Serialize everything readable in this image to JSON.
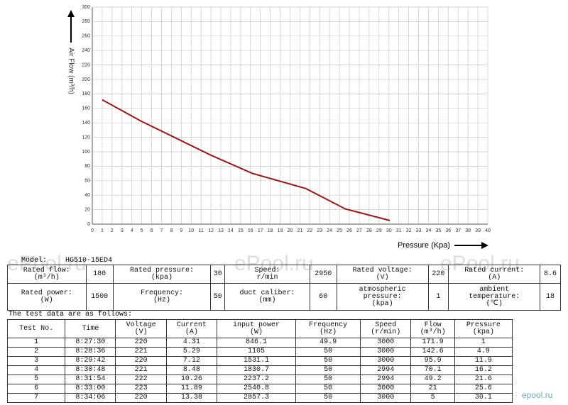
{
  "chart_data": {
    "type": "line",
    "ylabel": "Air Flow (m³/h)",
    "xlabel": "Pressure (Kpa)",
    "xlim": [
      0,
      40
    ],
    "xticks": [
      0,
      1,
      2,
      3,
      4,
      5,
      6,
      7,
      8,
      9,
      10,
      11,
      12,
      13,
      14,
      15,
      16,
      17,
      18,
      19,
      20,
      21,
      22,
      23,
      24,
      25,
      26,
      27,
      28,
      29,
      30,
      31,
      32,
      33,
      34,
      35,
      36,
      37,
      38,
      39,
      40
    ],
    "ylim": [
      0,
      300
    ],
    "yticks": [
      0,
      20,
      40,
      60,
      80,
      100,
      120,
      140,
      160,
      180,
      200,
      220,
      240,
      260,
      280,
      300
    ],
    "grid": true,
    "x": [
      1,
      4.9,
      11.9,
      16.2,
      21.6,
      25.6,
      30.1
    ],
    "series": [
      {
        "name": "Air Flow",
        "color": "#a01414",
        "values": [
          171.9,
          142.6,
          95.9,
          70.1,
          49.2,
          21,
          5
        ]
      }
    ]
  },
  "spec": {
    "model_label": "Model:",
    "model": "HG510-15ED4",
    "rows": [
      [
        "Rated flow:\n(m³/h)",
        180,
        "Rated pressure:\n(kpa)",
        30,
        "Speed:\nr/min",
        2950,
        "Rated voltage:\n(V)",
        220,
        "Rated current:\n(A)",
        8.6
      ],
      [
        "Rated power:\n(W)",
        1500,
        "Frequency:\n(Hz)",
        50,
        "duct caliber:\n(mm)",
        60,
        "atmospheric\npressure:\n(kpa)",
        1,
        "ambient\ntemperature:\n(℃)",
        18
      ]
    ]
  },
  "test": {
    "caption": "The test data are as follows:",
    "header": [
      "Test No.",
      "Time",
      "Voltage\n(V)",
      "Current\n(A)",
      "input power\n(W)",
      "Frequency\n(Hz)",
      "Speed\n(r/min)",
      "Flow\n(m³/h)",
      "Pressure\n(kpa)"
    ],
    "rows": [
      [
        1,
        "8:27:30",
        220,
        4.31,
        846.1,
        49.9,
        3000,
        171.9,
        1
      ],
      [
        2,
        "8:28:36",
        221,
        5.29,
        1105,
        50,
        3000,
        142.6,
        4.9
      ],
      [
        3,
        "8:29:42",
        220,
        7.12,
        1531.1,
        50,
        3000,
        95.9,
        11.9
      ],
      [
        4,
        "8:30:48",
        221,
        8.48,
        1830.7,
        50,
        2994,
        70.1,
        16.2
      ],
      [
        5,
        "8:31:54",
        222,
        10.26,
        2237.2,
        50,
        2994,
        49.2,
        21.6
      ],
      [
        6,
        "8:33:00",
        223,
        11.89,
        2540.8,
        50,
        3000,
        21,
        25.6
      ],
      [
        7,
        "8:34:06",
        220,
        13.38,
        2857.3,
        50,
        3000,
        5,
        30.1
      ]
    ]
  },
  "watermark": "ePool.ru",
  "corner_mark": "epool.ru"
}
